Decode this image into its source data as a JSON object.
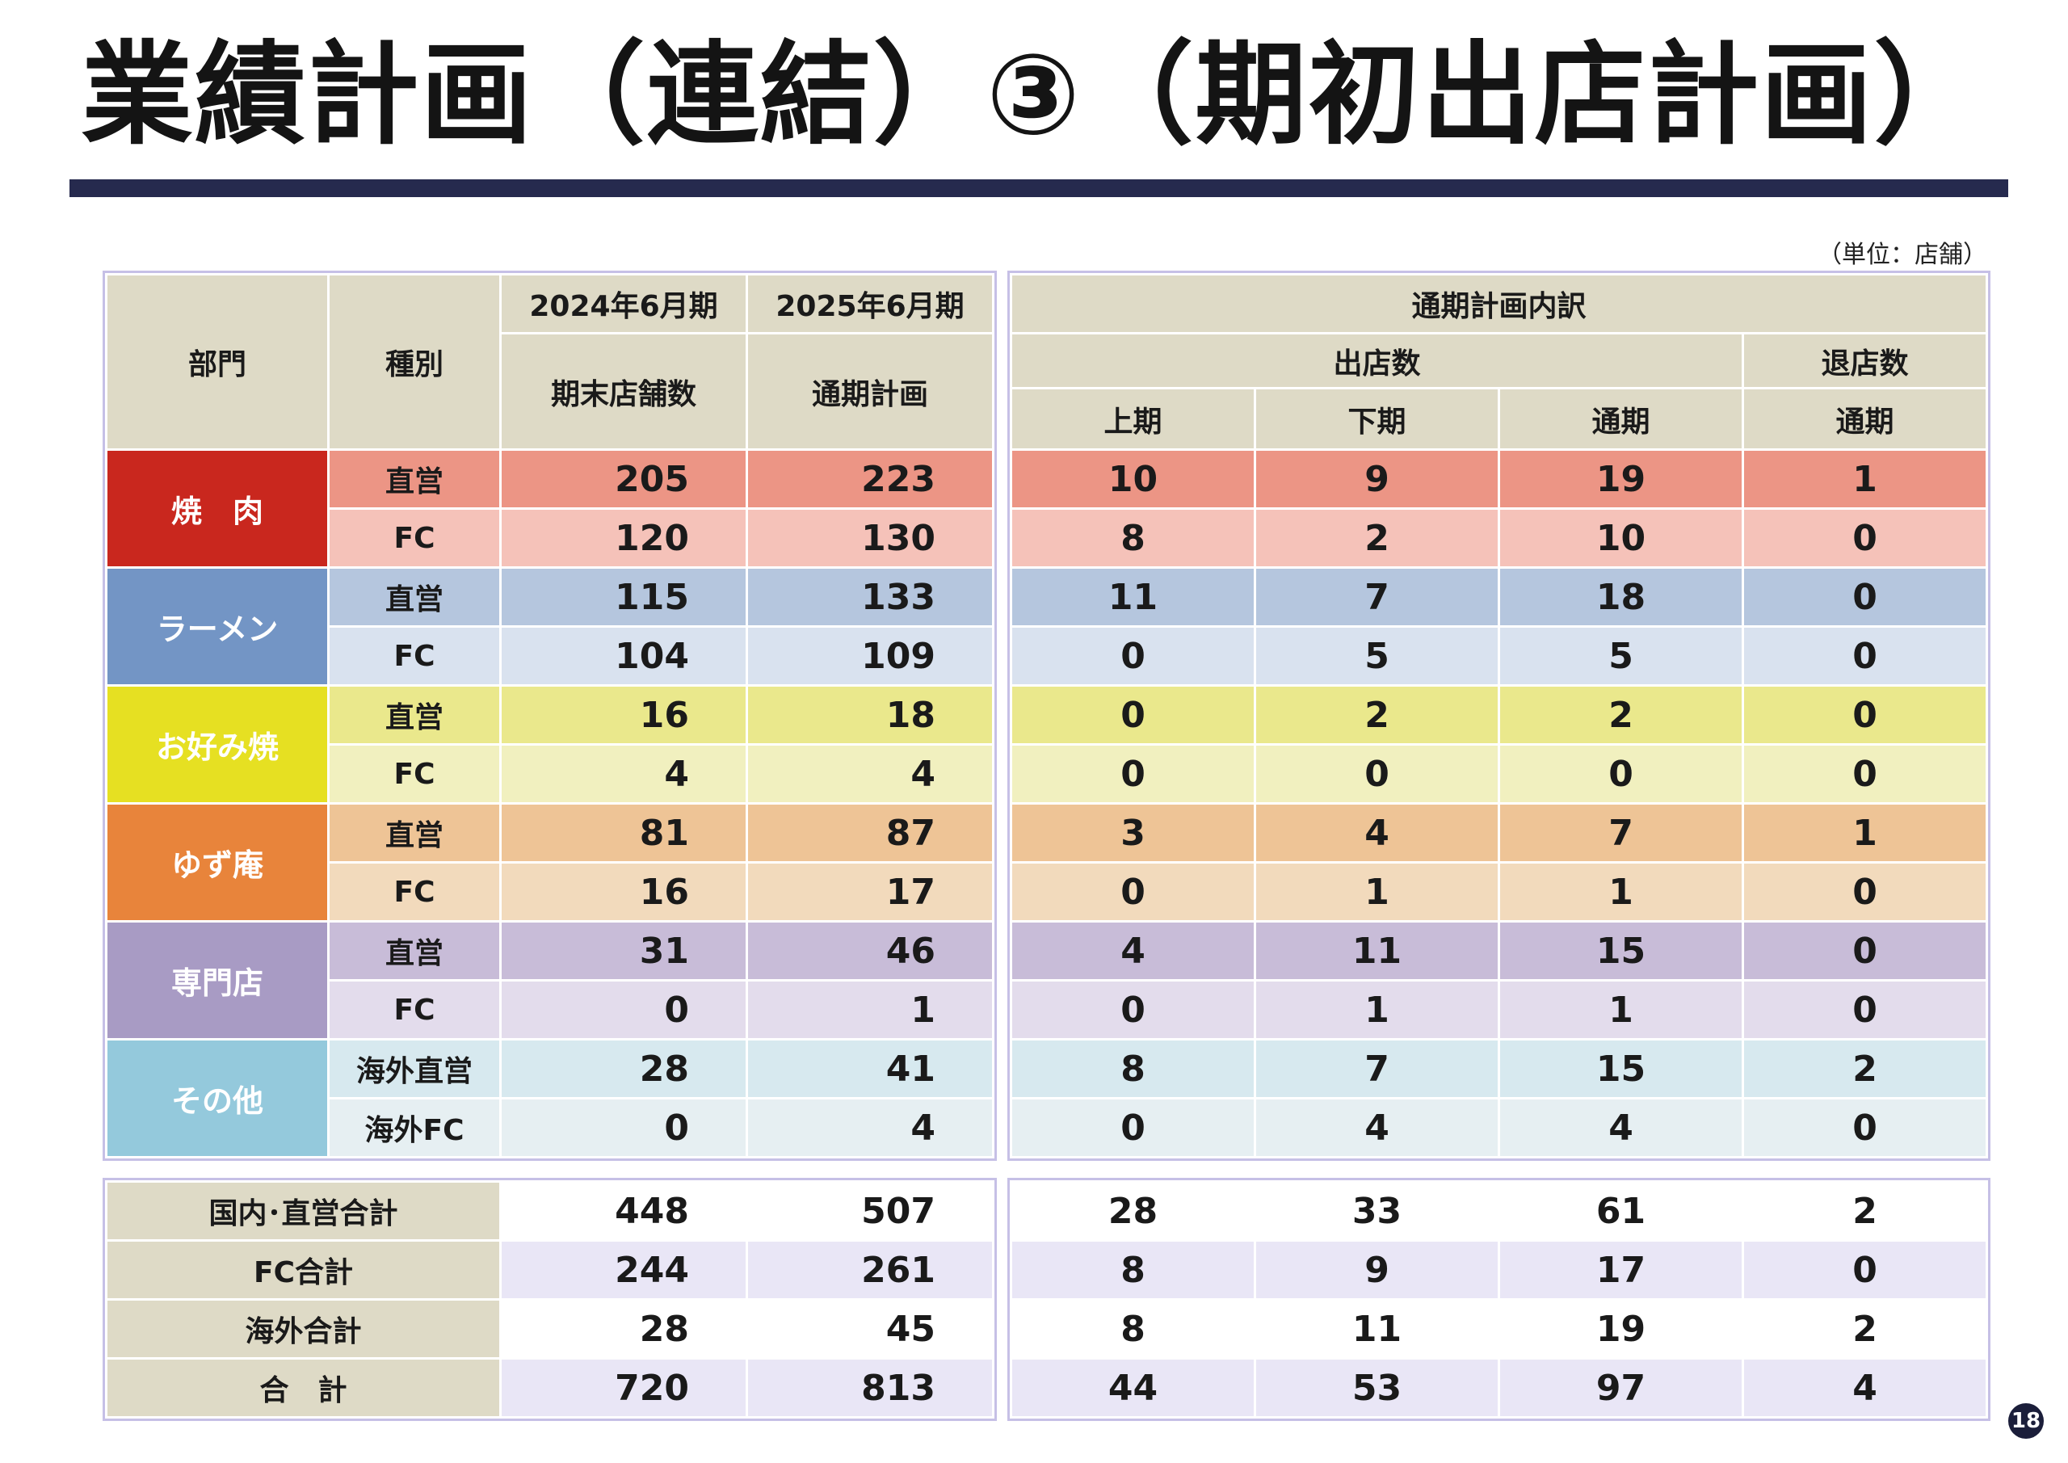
{
  "title": "業績計画（連結）③（期初出店計画）",
  "unit": "（単位：店舗）",
  "page_number": "18",
  "colors": {
    "header_bg": "#dedac6",
    "rule": "#262a4e",
    "yakiniku": "#c9271e",
    "ramen": "#7395c5",
    "okonomiyaki": "#e6e022",
    "yuzuan": "#e8843b",
    "specialty": "#a89bc4",
    "other": "#94c9dc"
  },
  "left_header": {
    "dept": "部門",
    "kind": "種別",
    "fy2024": "2024年6月期",
    "fy2025": "2025年6月期",
    "stores_end": "期末店舗数",
    "plan": "通期計画"
  },
  "right_header": {
    "breakdown": "通期計画内訳",
    "openings": "出店数",
    "closings": "退店数",
    "h1": "上期",
    "h2": "下期",
    "full": "通期",
    "close_full": "通期"
  },
  "departments": [
    {
      "name": "焼　肉",
      "rows": [
        {
          "kind": "直営",
          "end2024": "205",
          "plan2025": "223",
          "h1": "10",
          "h2": "9",
          "full": "19",
          "close": "1"
        },
        {
          "kind": "FC",
          "end2024": "120",
          "plan2025": "130",
          "h1": "8",
          "h2": "2",
          "full": "10",
          "close": "0"
        }
      ]
    },
    {
      "name": "ラーメン",
      "rows": [
        {
          "kind": "直営",
          "end2024": "115",
          "plan2025": "133",
          "h1": "11",
          "h2": "7",
          "full": "18",
          "close": "0"
        },
        {
          "kind": "FC",
          "end2024": "104",
          "plan2025": "109",
          "h1": "0",
          "h2": "5",
          "full": "5",
          "close": "0"
        }
      ]
    },
    {
      "name": "お好み焼",
      "rows": [
        {
          "kind": "直営",
          "end2024": "16",
          "plan2025": "18",
          "h1": "0",
          "h2": "2",
          "full": "2",
          "close": "0"
        },
        {
          "kind": "FC",
          "end2024": "4",
          "plan2025": "4",
          "h1": "0",
          "h2": "0",
          "full": "0",
          "close": "0"
        }
      ]
    },
    {
      "name": "ゆず庵",
      "rows": [
        {
          "kind": "直営",
          "end2024": "81",
          "plan2025": "87",
          "h1": "3",
          "h2": "4",
          "full": "7",
          "close": "1"
        },
        {
          "kind": "FC",
          "end2024": "16",
          "plan2025": "17",
          "h1": "0",
          "h2": "1",
          "full": "1",
          "close": "0"
        }
      ]
    },
    {
      "name": "専門店",
      "rows": [
        {
          "kind": "直営",
          "end2024": "31",
          "plan2025": "46",
          "h1": "4",
          "h2": "11",
          "full": "15",
          "close": "0"
        },
        {
          "kind": "FC",
          "end2024": "0",
          "plan2025": "1",
          "h1": "0",
          "h2": "1",
          "full": "1",
          "close": "0"
        }
      ]
    },
    {
      "name": "その他",
      "rows": [
        {
          "kind": "海外直営",
          "end2024": "28",
          "plan2025": "41",
          "h1": "8",
          "h2": "7",
          "full": "15",
          "close": "2"
        },
        {
          "kind": "海外FC",
          "end2024": "0",
          "plan2025": "4",
          "h1": "0",
          "h2": "4",
          "full": "4",
          "close": "0"
        }
      ]
    }
  ],
  "totals": [
    {
      "label": "国内･直営合計",
      "end2024": "448",
      "plan2025": "507",
      "h1": "28",
      "h2": "33",
      "full": "61",
      "close": "2"
    },
    {
      "label": "FC合計",
      "end2024": "244",
      "plan2025": "261",
      "h1": "8",
      "h2": "9",
      "full": "17",
      "close": "0"
    },
    {
      "label": "海外合計",
      "end2024": "28",
      "plan2025": "45",
      "h1": "8",
      "h2": "11",
      "full": "19",
      "close": "2"
    },
    {
      "label": "合　計",
      "end2024": "720",
      "plan2025": "813",
      "h1": "44",
      "h2": "53",
      "full": "97",
      "close": "4"
    }
  ]
}
